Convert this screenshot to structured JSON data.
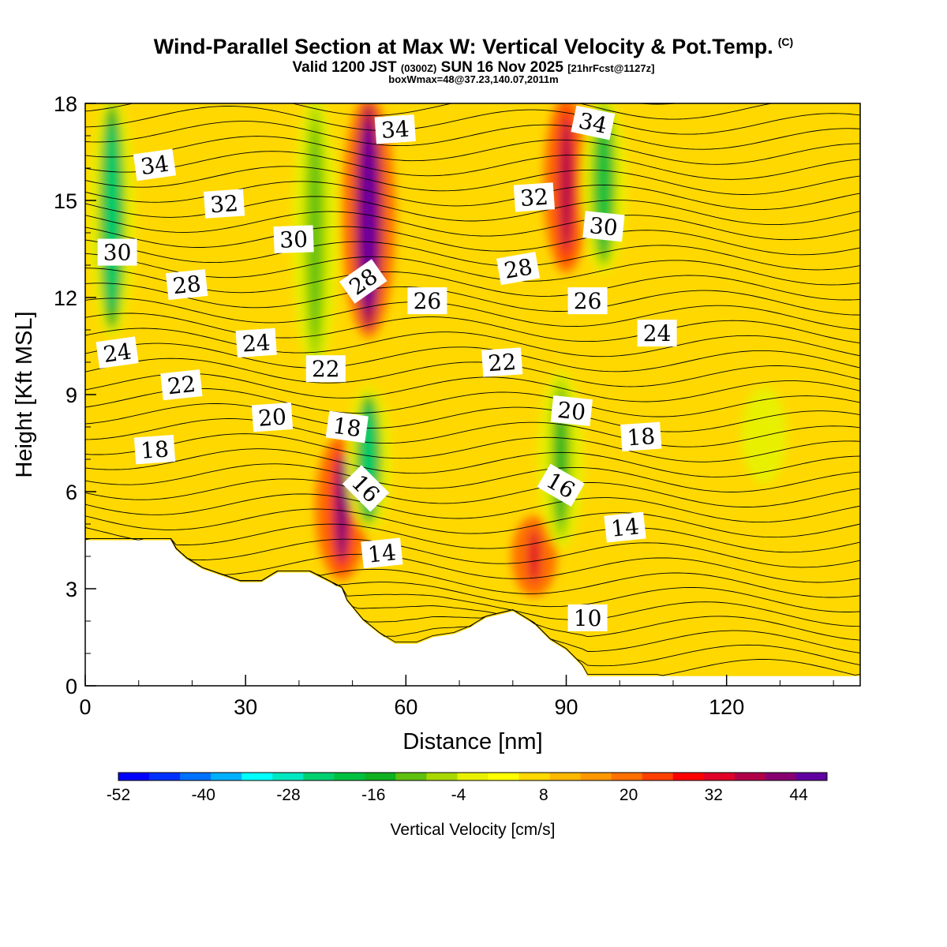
{
  "title": {
    "main": "Wind-Parallel Section at Max W: Vertical Velocity & Pot.Temp.",
    "copyright": "(C)",
    "valid_prefix": "Valid 1200 JST",
    "valid_zulu": "(0300Z)",
    "valid_date": "SUN 16 Nov 2025",
    "forecast": "[21hrFcst@1127z]",
    "box_info": "boxWmax=48@37.23,140.07,2011m"
  },
  "chart_data": {
    "type": "heatmap",
    "xlabel": "Distance [nm]",
    "ylabel": "Height [Kft MSL]",
    "xlim": [
      0,
      145
    ],
    "ylim": [
      0,
      18
    ],
    "xticks": [
      0,
      30,
      60,
      90,
      120
    ],
    "yticks": [
      0,
      3,
      6,
      9,
      12,
      15,
      18
    ],
    "colorbar": {
      "label": "Vertical Velocity [cm/s]",
      "min": -52,
      "max": 48,
      "step": 4,
      "tick_labels": [
        "-52",
        "-40",
        "-28",
        "-16",
        "-4",
        "8",
        "20",
        "32",
        "44"
      ],
      "colors": [
        "#0000ff",
        "#0030ff",
        "#0070ff",
        "#00b0ff",
        "#00ffff",
        "#00e8c0",
        "#00d070",
        "#00c040",
        "#10b020",
        "#60c010",
        "#a8d800",
        "#e8f000",
        "#ffff00",
        "#ffd800",
        "#ffb800",
        "#ff9800",
        "#ff7000",
        "#ff4000",
        "#ff0000",
        "#e00028",
        "#b00048",
        "#880070",
        "#6000a0"
      ]
    },
    "w_features": [
      {
        "kind": "updraft",
        "x_nm": 53,
        "z_top": 18,
        "z_bot": 11,
        "peak_cm_s": 48
      },
      {
        "kind": "updraft",
        "x_nm": 48,
        "z_top": 7.5,
        "z_bot": 3.5,
        "peak_cm_s": 32
      },
      {
        "kind": "updraft",
        "x_nm": 90,
        "z_top": 18,
        "z_bot": 13,
        "peak_cm_s": 28
      },
      {
        "kind": "updraft",
        "x_nm": 84,
        "z_top": 5,
        "z_bot": 3,
        "peak_cm_s": 24
      },
      {
        "kind": "downdraft",
        "x_nm": 53,
        "z_top": 9,
        "z_bot": 5,
        "peak_cm_s": -28
      },
      {
        "kind": "downdraft",
        "x_nm": 43,
        "z_top": 18,
        "z_bot": 10,
        "peak_cm_s": -16
      },
      {
        "kind": "downdraft",
        "x_nm": 89,
        "z_top": 9.5,
        "z_bot": 4.5,
        "peak_cm_s": -20
      },
      {
        "kind": "downdraft",
        "x_nm": 5,
        "z_top": 18,
        "z_bot": 11,
        "peak_cm_s": -28
      },
      {
        "kind": "downdraft",
        "x_nm": 97,
        "z_top": 18,
        "z_bot": 13,
        "peak_cm_s": -24
      },
      {
        "kind": "downdraft",
        "x_nm": 127,
        "z_top": 9,
        "z_bot": 6.5,
        "peak_cm_s": -8
      }
    ],
    "terrain_profile": {
      "x_nm": [
        0,
        16,
        17,
        19,
        22,
        29,
        33,
        36,
        42,
        48,
        49,
        52,
        55,
        58,
        62,
        65,
        69,
        72,
        75,
        80,
        84,
        87,
        90,
        93,
        94,
        96,
        145
      ],
      "z_kft": [
        4.5,
        4.5,
        4.2,
        3.9,
        3.6,
        3.2,
        3.2,
        3.5,
        3.5,
        3.0,
        2.6,
        2.0,
        1.6,
        1.3,
        1.3,
        1.5,
        1.6,
        1.8,
        2.1,
        2.3,
        1.9,
        1.4,
        1.1,
        0.6,
        0.3,
        0.3,
        0.3
      ]
    },
    "isentropes_degC": [
      10,
      12,
      14,
      16,
      18,
      20,
      22,
      24,
      26,
      28,
      30,
      32,
      34
    ],
    "contour_labels": [
      {
        "text": "34",
        "x_nm": 13,
        "z_kft": 16.1,
        "rot": -8
      },
      {
        "text": "32",
        "x_nm": 26,
        "z_kft": 14.9,
        "rot": -4
      },
      {
        "text": "30",
        "x_nm": 6,
        "z_kft": 13.4,
        "rot": 0
      },
      {
        "text": "28",
        "x_nm": 19,
        "z_kft": 12.4,
        "rot": -6
      },
      {
        "text": "30",
        "x_nm": 39,
        "z_kft": 13.8,
        "rot": -2
      },
      {
        "text": "28",
        "x_nm": 52,
        "z_kft": 12.5,
        "rot": -35
      },
      {
        "text": "34",
        "x_nm": 58,
        "z_kft": 17.2,
        "rot": -4
      },
      {
        "text": "26",
        "x_nm": 64,
        "z_kft": 11.9,
        "rot": 0
      },
      {
        "text": "24",
        "x_nm": 6,
        "z_kft": 10.3,
        "rot": -8
      },
      {
        "text": "24",
        "x_nm": 32,
        "z_kft": 10.6,
        "rot": -4
      },
      {
        "text": "22",
        "x_nm": 18,
        "z_kft": 9.3,
        "rot": -6
      },
      {
        "text": "22",
        "x_nm": 45,
        "z_kft": 9.8,
        "rot": 0
      },
      {
        "text": "20",
        "x_nm": 35,
        "z_kft": 8.3,
        "rot": -4
      },
      {
        "text": "18",
        "x_nm": 13,
        "z_kft": 7.3,
        "rot": -4
      },
      {
        "text": "18",
        "x_nm": 49,
        "z_kft": 8.0,
        "rot": 8
      },
      {
        "text": "16",
        "x_nm": 52.5,
        "z_kft": 6.1,
        "rot": 45
      },
      {
        "text": "14",
        "x_nm": 55.5,
        "z_kft": 4.1,
        "rot": -6
      },
      {
        "text": "22",
        "x_nm": 78,
        "z_kft": 10.0,
        "rot": -4
      },
      {
        "text": "28",
        "x_nm": 81,
        "z_kft": 12.9,
        "rot": -10
      },
      {
        "text": "32",
        "x_nm": 84,
        "z_kft": 15.1,
        "rot": -4
      },
      {
        "text": "34",
        "x_nm": 95,
        "z_kft": 17.4,
        "rot": 12
      },
      {
        "text": "30",
        "x_nm": 97,
        "z_kft": 14.2,
        "rot": 6
      },
      {
        "text": "26",
        "x_nm": 94,
        "z_kft": 11.9,
        "rot": 0
      },
      {
        "text": "24",
        "x_nm": 107,
        "z_kft": 10.9,
        "rot": 0
      },
      {
        "text": "20",
        "x_nm": 91,
        "z_kft": 8.5,
        "rot": 6
      },
      {
        "text": "18",
        "x_nm": 104,
        "z_kft": 7.7,
        "rot": -4
      },
      {
        "text": "16",
        "x_nm": 89,
        "z_kft": 6.2,
        "rot": 30
      },
      {
        "text": "14",
        "x_nm": 101,
        "z_kft": 4.9,
        "rot": -6
      },
      {
        "text": "10",
        "x_nm": 94,
        "z_kft": 2.1,
        "rot": 0
      }
    ]
  }
}
